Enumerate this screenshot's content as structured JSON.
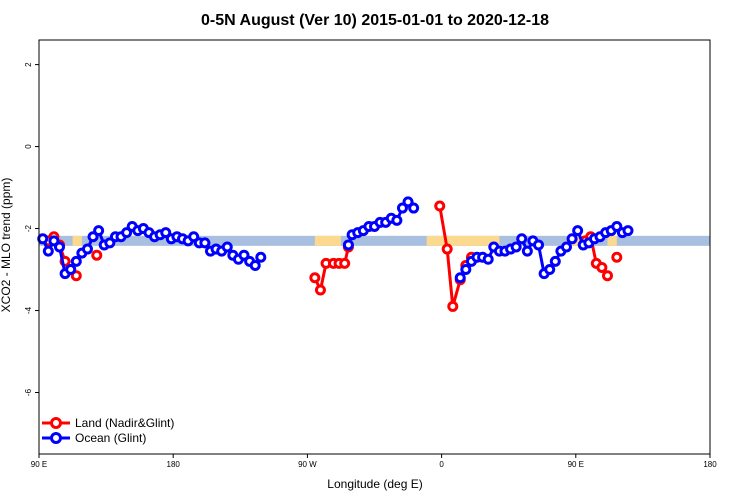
{
  "chart_data": {
    "type": "line",
    "title": "0-5N August (Ver 10)   2015-01-01 to 2020-12-18",
    "xlabel": "Longitude (deg E)",
    "ylabel": "XCO2 - MLO trend (ppm)",
    "xlim": [
      90,
      450
    ],
    "ylim": [
      -7.5,
      2.6
    ],
    "x_ticks": [
      {
        "value": 90,
        "label": "90 E"
      },
      {
        "value": 162,
        "label": "180"
      },
      {
        "value": 234,
        "label": "90 W"
      },
      {
        "value": 306,
        "label": "0"
      },
      {
        "value": 378,
        "label": "90 E"
      },
      {
        "value": 450,
        "label": "180"
      }
    ],
    "y_ticks": [
      {
        "value": 2,
        "label": "2"
      },
      {
        "value": 0,
        "label": "0"
      },
      {
        "value": -2,
        "label": "-2"
      },
      {
        "value": -4,
        "label": "-4"
      },
      {
        "value": -6,
        "label": "-6"
      }
    ],
    "band": {
      "y": -2.3,
      "ocean_color": "#a9bfe0",
      "land_color": "#fbd98e",
      "land_ranges": [
        [
          108,
          113
        ],
        [
          238,
          252
        ],
        [
          298,
          337
        ],
        [
          373,
          383
        ],
        [
          395,
          400
        ]
      ]
    },
    "legend": {
      "position": "bottom-left",
      "entries": [
        "Land (Nadir&Glint)",
        "Ocean (Glint)"
      ]
    },
    "series": [
      {
        "name": "Land (Nadir&Glint)",
        "color": "#ff0000",
        "segments": [
          [
            [
              95,
              -2.3
            ],
            [
              98,
              -2.2
            ],
            [
              101,
              -2.4
            ],
            [
              104,
              -2.8
            ],
            [
              107,
              -3.0
            ],
            [
              110,
              -3.15
            ]
          ],
          [
            [
              121,
              -2.65
            ]
          ],
          [
            [
              238,
              -3.2
            ],
            [
              241,
              -3.5
            ],
            [
              244,
              -2.85
            ],
            [
              248,
              -2.85
            ],
            [
              251,
              -2.85
            ],
            [
              254,
              -2.85
            ],
            [
              256,
              -2.45
            ]
          ],
          [
            [
              305,
              -1.45
            ],
            [
              309,
              -2.5
            ],
            [
              312,
              -3.9
            ],
            [
              316,
              -3.25
            ],
            [
              319,
              -2.9
            ],
            [
              322,
              -2.7
            ]
          ],
          [
            [
              383,
              -2.3
            ],
            [
              386,
              -2.2
            ],
            [
              389,
              -2.85
            ],
            [
              392,
              -2.95
            ],
            [
              395,
              -3.15
            ]
          ],
          [
            [
              400,
              -2.7
            ]
          ]
        ]
      },
      {
        "name": "Ocean (Glint)",
        "color": "#0000ff",
        "segments": [
          [
            [
              92,
              -2.25
            ],
            [
              95,
              -2.55
            ],
            [
              98,
              -2.3
            ],
            [
              101,
              -2.45
            ],
            [
              104,
              -3.1
            ],
            [
              107,
              -3.0
            ],
            [
              110,
              -2.8
            ],
            [
              113,
              -2.6
            ],
            [
              116,
              -2.5
            ],
            [
              119,
              -2.2
            ],
            [
              122,
              -2.05
            ],
            [
              125,
              -2.4
            ],
            [
              128,
              -2.35
            ],
            [
              131,
              -2.2
            ],
            [
              134,
              -2.2
            ],
            [
              137,
              -2.1
            ],
            [
              140,
              -1.95
            ],
            [
              143,
              -2.05
            ],
            [
              146,
              -2.0
            ],
            [
              149,
              -2.1
            ],
            [
              152,
              -2.2
            ],
            [
              155,
              -2.15
            ],
            [
              158,
              -2.1
            ],
            [
              161,
              -2.25
            ],
            [
              164,
              -2.2
            ],
            [
              167,
              -2.25
            ],
            [
              170,
              -2.3
            ],
            [
              173,
              -2.2
            ],
            [
              176,
              -2.35
            ],
            [
              179,
              -2.35
            ],
            [
              182,
              -2.55
            ],
            [
              185,
              -2.5
            ],
            [
              188,
              -2.55
            ],
            [
              191,
              -2.45
            ],
            [
              194,
              -2.65
            ],
            [
              197,
              -2.75
            ],
            [
              200,
              -2.65
            ],
            [
              203,
              -2.8
            ],
            [
              206,
              -2.9
            ],
            [
              209,
              -2.7
            ]
          ],
          [
            [
              256,
              -2.4
            ],
            [
              258,
              -2.15
            ],
            [
              261,
              -2.1
            ],
            [
              264,
              -2.05
            ],
            [
              267,
              -1.95
            ],
            [
              270,
              -1.95
            ],
            [
              273,
              -1.85
            ],
            [
              276,
              -1.85
            ],
            [
              279,
              -1.75
            ],
            [
              282,
              -1.8
            ],
            [
              285,
              -1.5
            ],
            [
              288,
              -1.35
            ],
            [
              291,
              -1.5
            ]
          ],
          [
            [
              316,
              -3.2
            ],
            [
              319,
              -3.0
            ],
            [
              322,
              -2.8
            ],
            [
              325,
              -2.7
            ],
            [
              328,
              -2.7
            ],
            [
              331,
              -2.75
            ],
            [
              334,
              -2.45
            ],
            [
              337,
              -2.55
            ],
            [
              340,
              -2.55
            ],
            [
              343,
              -2.5
            ],
            [
              346,
              -2.45
            ],
            [
              349,
              -2.25
            ],
            [
              352,
              -2.55
            ],
            [
              355,
              -2.3
            ],
            [
              358,
              -2.4
            ],
            [
              361,
              -3.1
            ],
            [
              364,
              -3.0
            ],
            [
              367,
              -2.8
            ],
            [
              370,
              -2.55
            ],
            [
              373,
              -2.45
            ],
            [
              376,
              -2.25
            ],
            [
              379,
              -2.05
            ],
            [
              382,
              -2.4
            ],
            [
              385,
              -2.35
            ],
            [
              388,
              -2.25
            ],
            [
              391,
              -2.2
            ],
            [
              394,
              -2.1
            ],
            [
              397,
              -2.05
            ],
            [
              400,
              -1.95
            ],
            [
              403,
              -2.1
            ],
            [
              406,
              -2.05
            ]
          ]
        ]
      }
    ]
  }
}
